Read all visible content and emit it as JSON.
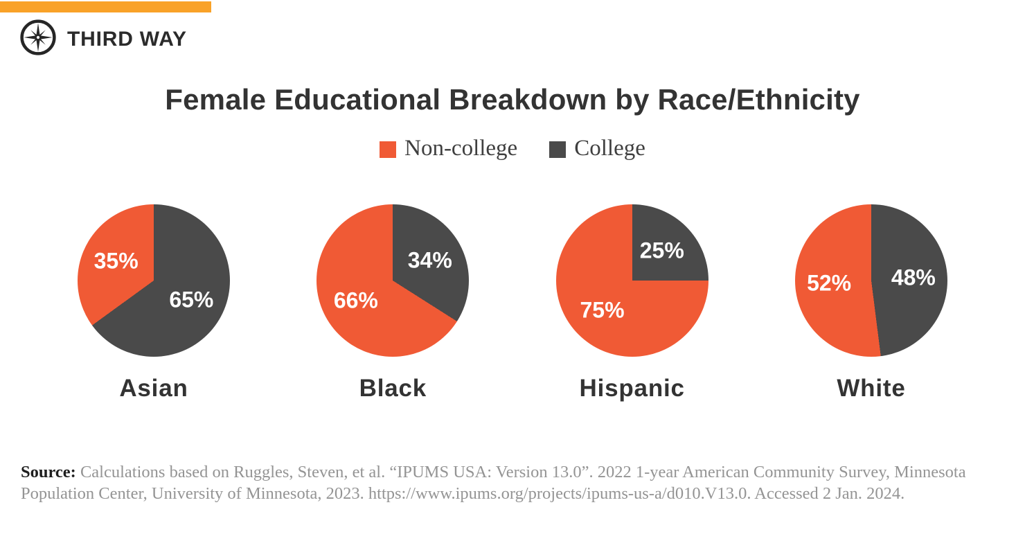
{
  "brand": {
    "name": "THIRD WAY",
    "topbar_color": "#F9A228"
  },
  "chart_data": {
    "type": "pie",
    "title": "Female Educational Breakdown by Race/Ethnicity",
    "legend_position": "top-center",
    "slice_label_format": "percent",
    "slice_label_color": "#FFFFFF",
    "categories": [
      "Asian",
      "Black",
      "Hispanic",
      "White"
    ],
    "series": [
      {
        "name": "Non-college",
        "color": "#F05A35",
        "values": [
          35,
          66,
          75,
          52
        ]
      },
      {
        "name": "College",
        "color": "#4A4A4A",
        "values": [
          65,
          34,
          25,
          48
        ]
      }
    ],
    "pies": [
      {
        "category": "Asian",
        "non_college": 35,
        "college": 65
      },
      {
        "category": "Black",
        "non_college": 66,
        "college": 34
      },
      {
        "category": "Hispanic",
        "non_college": 75,
        "college": 25
      },
      {
        "category": "White",
        "non_college": 52,
        "college": 48
      }
    ]
  },
  "source": {
    "label": "Source:",
    "text": "Calculations based on Ruggles, Steven, et al. “IPUMS USA: Version 13.0”. 2022 1-year American Community Survey, Minnesota Population Center, University of Minnesota, 2023. https://www.ipums.org/projects/ipums-us-a/d010.V13.0. Accessed 2 Jan. 2024."
  }
}
